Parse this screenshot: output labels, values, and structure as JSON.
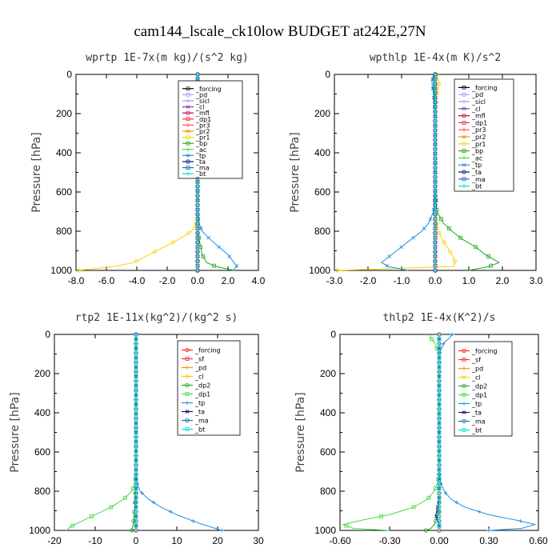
{
  "figure_title": "cam144_lscale_ck10low  BUDGET at242E,27N",
  "chart_data": [
    {
      "type": "line",
      "title": "wprtp  1E-7x(m kg)/(s^2 kg)",
      "ylabel": "Pressure [hPa]",
      "xlim": [
        -8,
        4
      ],
      "ylim": [
        1000,
        0
      ],
      "xticks": [
        "-8.0",
        "-6.0",
        "-4.0",
        "-2.0",
        "0.0",
        "2.0",
        "4.0"
      ],
      "yticks": [
        "0",
        "200",
        "400",
        "600",
        "800",
        "1000"
      ],
      "legend_location": "top-right",
      "pressure": [
        0,
        200,
        400,
        600,
        700,
        760,
        800,
        840,
        880,
        920,
        960,
        980,
        1000
      ],
      "series": [
        {
          "name": "_forcing",
          "color": "#000000",
          "values": [
            0,
            0,
            0,
            0,
            0,
            0,
            0,
            0,
            0,
            0,
            0,
            0,
            0
          ]
        },
        {
          "name": "_pd",
          "color": "#b0a0ff",
          "values": [
            0,
            0,
            0,
            0,
            0,
            0,
            0,
            0,
            0,
            0,
            0,
            0,
            0
          ]
        },
        {
          "name": "_sicl",
          "color": "#9a9aff",
          "values": [
            0,
            0,
            0,
            0,
            0,
            0,
            0,
            0,
            0,
            0,
            0,
            0,
            0
          ]
        },
        {
          "name": "_cl",
          "color": "#7a3db8",
          "values": [
            0,
            0,
            0,
            0,
            0,
            0,
            0,
            0,
            0,
            0,
            0,
            0,
            0
          ]
        },
        {
          "name": "_mfl",
          "color": "#c0004a",
          "values": [
            0,
            0,
            0,
            0,
            0,
            0,
            0,
            0,
            0,
            0,
            0,
            0,
            0
          ]
        },
        {
          "name": "_dp1",
          "color": "#ff3030",
          "values": [
            0,
            0,
            0,
            0,
            0,
            0,
            0,
            0,
            0,
            0,
            0,
            0,
            0
          ]
        },
        {
          "name": "_pr3",
          "color": "#ff5050",
          "values": [
            0,
            0,
            0,
            0,
            0,
            0,
            0,
            0,
            0,
            0,
            0,
            0,
            0
          ]
        },
        {
          "name": "_pr2",
          "color": "#ff9000",
          "values": [
            0,
            0,
            0,
            0,
            0,
            0,
            0,
            0,
            0,
            0,
            0,
            0,
            0
          ]
        },
        {
          "name": "_pr1",
          "color": "#ffd000",
          "values": [
            0,
            0,
            0,
            0,
            0,
            -0.1,
            -0.4,
            -1.2,
            -2.2,
            -3.2,
            -4.2,
            -5.5,
            -7.8
          ]
        },
        {
          "name": "_bp",
          "color": "#22aa22",
          "values": [
            0,
            0,
            0,
            0,
            0,
            0,
            0,
            0.1,
            0.2,
            0.3,
            0.6,
            1.2,
            2.4
          ]
        },
        {
          "name": "_ac",
          "color": "#44dd44",
          "values": [
            0,
            0,
            0,
            0,
            0,
            0,
            0,
            0,
            0,
            0,
            0,
            0,
            0
          ]
        },
        {
          "name": "_tp",
          "color": "#2090e0",
          "values": [
            0,
            0,
            0,
            0,
            0,
            0.1,
            0.3,
            0.8,
            1.4,
            2.0,
            2.4,
            2.6,
            2.3
          ]
        },
        {
          "name": "_ta",
          "color": "#101080",
          "values": [
            0,
            0,
            0,
            0,
            0,
            0,
            0,
            0,
            0,
            0,
            0,
            0,
            0
          ]
        },
        {
          "name": "_ma",
          "color": "#1a70c0",
          "values": [
            0,
            0,
            0,
            0,
            0,
            0,
            0,
            0,
            0,
            0,
            0,
            0,
            0
          ]
        },
        {
          "name": "_bt",
          "color": "#00e0e0",
          "values": [
            0,
            0,
            0,
            0,
            0,
            0,
            0,
            0,
            0,
            0,
            0,
            0,
            0
          ]
        }
      ]
    },
    {
      "type": "line",
      "title": "wpthlp  1E-4x(m K)/s^2",
      "ylabel": "Pressure [hPa]",
      "xlim": [
        -3,
        3
      ],
      "ylim": [
        1000,
        0
      ],
      "xticks": [
        "-3.0",
        "-2.0",
        "-1.0",
        "0.0",
        "1.0",
        "2.0",
        "3.0"
      ],
      "yticks": [
        "0",
        "200",
        "400",
        "600",
        "800",
        "1000"
      ],
      "legend_location": "top-right",
      "pressure": [
        0,
        40,
        100,
        200,
        400,
        600,
        700,
        760,
        800,
        840,
        880,
        920,
        960,
        980,
        1000
      ],
      "series": [
        {
          "name": "_forcing",
          "color": "#000000",
          "values": [
            0,
            0,
            0,
            0,
            0,
            0,
            0,
            0,
            0,
            0,
            0,
            0,
            0,
            0,
            0
          ]
        },
        {
          "name": "_pd",
          "color": "#b0a0ff",
          "values": [
            0,
            0,
            0,
            0,
            0,
            0,
            0,
            0,
            0,
            0,
            0,
            0,
            0,
            0,
            0
          ]
        },
        {
          "name": "_sicl",
          "color": "#9a9aff",
          "values": [
            0,
            0,
            0,
            0,
            0,
            0,
            0,
            0,
            0,
            0,
            0,
            0,
            0,
            0,
            0
          ]
        },
        {
          "name": "_cl",
          "color": "#7a3db8",
          "values": [
            0,
            0,
            0,
            0,
            0,
            0,
            0,
            0,
            0,
            0,
            0,
            0,
            0,
            0,
            0
          ]
        },
        {
          "name": "_mfl",
          "color": "#c0004a",
          "values": [
            0,
            0,
            0,
            0,
            0,
            0,
            0,
            0,
            0,
            0,
            0,
            0,
            0,
            0,
            0
          ]
        },
        {
          "name": "_dp1",
          "color": "#ff3030",
          "values": [
            0,
            0,
            0,
            0,
            0,
            0,
            0,
            0,
            0,
            0,
            0,
            0,
            0,
            0,
            0
          ]
        },
        {
          "name": "_pr3",
          "color": "#ff5050",
          "values": [
            0,
            0,
            0,
            0,
            0,
            0,
            0,
            0,
            0,
            0,
            0,
            0,
            0,
            0,
            0
          ]
        },
        {
          "name": "_pr2",
          "color": "#ff9000",
          "values": [
            0,
            0,
            0,
            0,
            0,
            0,
            0,
            0,
            0,
            0,
            0,
            0,
            0,
            0,
            0
          ]
        },
        {
          "name": "_pr1",
          "color": "#ffd000",
          "values": [
            0.05,
            0.12,
            0.05,
            0,
            0,
            0,
            0,
            0.05,
            0.1,
            0.2,
            0.35,
            0.5,
            0.6,
            0.55,
            -2.9
          ]
        },
        {
          "name": "_bp",
          "color": "#22aa22",
          "values": [
            -0.03,
            -0.05,
            -0.02,
            0,
            0,
            0,
            0.05,
            0.25,
            0.5,
            0.8,
            1.2,
            1.5,
            1.9,
            1.6,
            1.0
          ]
        },
        {
          "name": "_ac",
          "color": "#44dd44",
          "values": [
            0,
            0,
            0,
            0,
            0,
            0,
            0,
            0,
            0,
            0,
            0,
            0,
            0,
            0,
            0
          ]
        },
        {
          "name": "_tp",
          "color": "#2090e0",
          "values": [
            -0.05,
            -0.1,
            -0.05,
            0,
            0,
            0,
            -0.05,
            -0.2,
            -0.4,
            -0.7,
            -1.0,
            -1.3,
            -1.6,
            -1.4,
            -0.8
          ]
        },
        {
          "name": "_ta",
          "color": "#101080",
          "values": [
            0,
            0,
            0,
            0,
            0,
            0,
            0,
            0,
            0,
            0,
            0,
            0,
            0,
            0,
            0
          ]
        },
        {
          "name": "_ma",
          "color": "#1a70c0",
          "values": [
            0,
            0,
            0,
            0,
            0,
            0,
            0,
            0,
            0,
            0,
            0,
            0,
            0,
            0,
            0
          ]
        },
        {
          "name": "_bt",
          "color": "#00e0e0",
          "values": [
            0,
            0,
            0,
            0,
            0,
            0,
            0,
            0,
            0,
            0,
            0,
            0,
            0,
            0,
            0
          ]
        }
      ]
    },
    {
      "type": "line",
      "title": "rtp2  1E-11x(kg^2)/(kg^2 s)",
      "ylabel": "Pressure [hPa]",
      "xlim": [
        -20,
        30
      ],
      "ylim": [
        1000,
        0
      ],
      "xticks": [
        "-20",
        "-10",
        "0",
        "10",
        "20",
        "30"
      ],
      "yticks": [
        "0",
        "200",
        "400",
        "600",
        "800",
        "1000"
      ],
      "legend_location": "top-right",
      "pressure": [
        0,
        200,
        400,
        600,
        700,
        760,
        800,
        840,
        880,
        920,
        960,
        980,
        1000
      ],
      "series": [
        {
          "name": "_forcing",
          "color": "#ff2020",
          "values": [
            0,
            0,
            0,
            0,
            0,
            0,
            0,
            0,
            0,
            0,
            0,
            0,
            0
          ]
        },
        {
          "name": "_sf",
          "color": "#ff3030",
          "values": [
            0,
            0,
            0,
            0,
            0,
            0,
            0,
            0,
            0,
            0,
            0,
            0,
            0
          ]
        },
        {
          "name": "_pd",
          "color": "#ff9000",
          "values": [
            0,
            0,
            0,
            0,
            0,
            0,
            0,
            0,
            0,
            0,
            0,
            0,
            0
          ]
        },
        {
          "name": "_cl",
          "color": "#ffd000",
          "values": [
            0,
            0,
            0,
            0,
            0,
            0,
            0,
            0,
            0,
            0,
            0,
            0,
            0
          ]
        },
        {
          "name": "_dp2",
          "color": "#22aa22",
          "values": [
            0,
            0,
            0,
            0,
            0,
            0,
            -0.1,
            -0.2,
            -0.3,
            -0.5,
            -0.6,
            -0.8,
            -1.0
          ]
        },
        {
          "name": "_dp1",
          "color": "#44dd44",
          "values": [
            0,
            0,
            0,
            0,
            0,
            -0.3,
            -1.0,
            -3.0,
            -6.0,
            -10.0,
            -14.0,
            -16.0,
            -17.0
          ]
        },
        {
          "name": "_tp",
          "color": "#2090e0",
          "values": [
            0,
            0,
            0,
            0,
            0,
            0.3,
            1.0,
            3.0,
            6.0,
            10.0,
            15.0,
            18.0,
            21.0
          ]
        },
        {
          "name": "_ta",
          "color": "#101080",
          "values": [
            0,
            0,
            0,
            0,
            0,
            0,
            0,
            0,
            0,
            0,
            0,
            0,
            0
          ]
        },
        {
          "name": "_ma",
          "color": "#1a70c0",
          "values": [
            0,
            0,
            0,
            0,
            0,
            0,
            0,
            0,
            0,
            0,
            0,
            0,
            0
          ]
        },
        {
          "name": "_bt",
          "color": "#00e0e0",
          "values": [
            0,
            0,
            0,
            0,
            0,
            0,
            0,
            0,
            0,
            0,
            0,
            0,
            0
          ]
        }
      ]
    },
    {
      "type": "line",
      "title": "thlp2  1E-4x(K^2)/s",
      "ylabel": "Pressure [hPa]",
      "xlim": [
        -0.6,
        0.6
      ],
      "ylim": [
        1000,
        0
      ],
      "xticks": [
        "-0.60",
        "-0.30",
        "0.00",
        "0.30",
        "0.60"
      ],
      "yticks": [
        "0",
        "200",
        "400",
        "600",
        "800",
        "1000"
      ],
      "legend_location": "top-right",
      "pressure": [
        0,
        20,
        40,
        60,
        80,
        100,
        200,
        400,
        600,
        700,
        760,
        800,
        840,
        880,
        920,
        950,
        970,
        990,
        1000
      ],
      "series": [
        {
          "name": "_forcing",
          "color": "#ff2020",
          "values": [
            0,
            0,
            0,
            0,
            0,
            0,
            0,
            0,
            0,
            0,
            0,
            0,
            0,
            0,
            0,
            0,
            0,
            0,
            0
          ]
        },
        {
          "name": "_sf",
          "color": "#ff3030",
          "values": [
            0,
            0,
            0,
            0,
            0,
            0,
            0,
            0,
            0,
            0,
            0,
            0,
            0,
            0,
            0,
            0,
            0,
            0,
            0
          ]
        },
        {
          "name": "_pd",
          "color": "#ff9000",
          "values": [
            0,
            0,
            0,
            0,
            0,
            0,
            0,
            0,
            0,
            0,
            0,
            0,
            0,
            0,
            0,
            0,
            0,
            0,
            0
          ]
        },
        {
          "name": "_cl",
          "color": "#ffd000",
          "values": [
            0,
            0,
            0,
            0,
            0,
            0,
            0,
            0,
            0,
            0,
            0,
            0,
            0,
            0,
            0,
            0,
            0,
            0,
            0
          ]
        },
        {
          "name": "_dp2",
          "color": "#22aa22",
          "values": [
            0,
            0,
            0,
            0,
            0,
            0,
            0,
            0,
            0,
            0,
            0,
            0,
            0,
            0,
            -0.01,
            -0.02,
            -0.03,
            -0.05,
            -0.08
          ]
        },
        {
          "name": "_dp1",
          "color": "#44dd44",
          "values": [
            -0.06,
            -0.05,
            -0.03,
            -0.02,
            -0.01,
            0,
            0,
            0,
            0,
            0,
            -0.01,
            -0.03,
            -0.07,
            -0.15,
            -0.3,
            -0.48,
            -0.58,
            -0.52,
            -0.3
          ]
        },
        {
          "name": "_tp",
          "color": "#2090e0",
          "values": [
            0.08,
            0.06,
            0.03,
            0.02,
            0.01,
            0,
            0,
            0,
            0,
            0,
            0.01,
            0.03,
            0.07,
            0.15,
            0.3,
            0.48,
            0.58,
            0.5,
            0.3
          ]
        },
        {
          "name": "_ta",
          "color": "#101080",
          "values": [
            0,
            0,
            0,
            0,
            0,
            0,
            0,
            0,
            0,
            0,
            0,
            0,
            0,
            -0.01,
            -0.02,
            -0.01,
            0,
            0,
            0
          ]
        },
        {
          "name": "_ma",
          "color": "#1a70c0",
          "values": [
            0,
            0,
            0,
            0,
            0,
            0,
            0,
            0,
            0,
            0,
            0,
            0,
            0,
            0,
            0,
            0,
            0,
            0,
            0
          ]
        },
        {
          "name": "_bt",
          "color": "#00e0e0",
          "values": [
            0,
            0,
            0,
            0,
            0,
            0,
            0,
            0,
            0,
            0,
            0,
            0,
            0,
            0,
            0,
            0,
            0,
            0,
            0
          ]
        }
      ]
    }
  ]
}
